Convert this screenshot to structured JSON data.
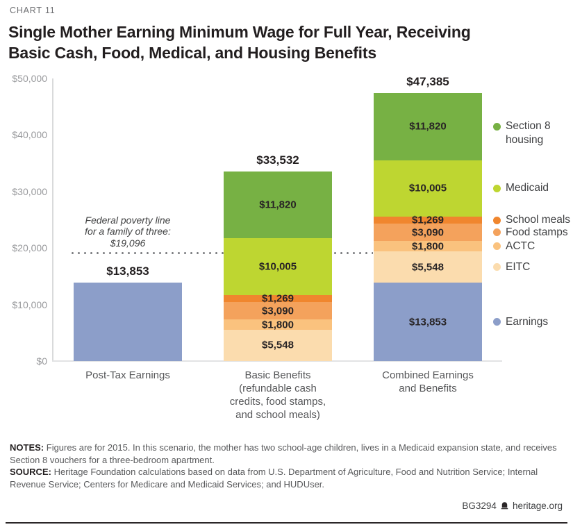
{
  "header": {
    "kicker": "CHART 11",
    "title_lines": [
      "Single Mother Earning Minimum Wage for Full Year, Receiving",
      "Basic Cash, Food, Medical, and Housing Benefits"
    ]
  },
  "chart_data": {
    "type": "bar",
    "stacked": true,
    "title": "Single Mother Earning Minimum Wage for Full Year, Receiving Basic Cash, Food, Medical, and Housing Benefits",
    "ylim": [
      0,
      50000
    ],
    "grid": false,
    "legend_position": "right",
    "yticks": [
      {
        "label": "$0",
        "value": 0
      },
      {
        "label": "$10,000",
        "value": 10000
      },
      {
        "label": "$20,000",
        "value": 20000
      },
      {
        "label": "$30,000",
        "value": 30000
      },
      {
        "label": "$40,000",
        "value": 40000
      },
      {
        "label": "$50,000",
        "value": 50000
      }
    ],
    "colors": {
      "earnings": "#8c9ec9",
      "eitc": "#fbdcae",
      "actc": "#fac27e",
      "food_stamps": "#f4a25c",
      "school_meals": "#f0862e",
      "medicaid": "#bed631",
      "section8": "#77b144"
    },
    "bars": [
      {
        "category_lines": [
          "Post-Tax Earnings"
        ],
        "total_label": "$13,853",
        "total_value": 13853,
        "segments": [
          {
            "key": "earnings",
            "name": "Earnings",
            "value": 13853,
            "label": ""
          }
        ]
      },
      {
        "category_lines": [
          "Basic Benefits",
          "(refundable cash",
          "credits, food stamps,",
          "and school meals)"
        ],
        "total_label": "$33,532",
        "total_value": 33532,
        "segments": [
          {
            "key": "eitc",
            "name": "EITC",
            "value": 5548,
            "label": "$5,548"
          },
          {
            "key": "actc",
            "name": "ACTC",
            "value": 1800,
            "label": "$1,800"
          },
          {
            "key": "food_stamps",
            "name": "Food stamps",
            "value": 3090,
            "label": "$3,090"
          },
          {
            "key": "school_meals",
            "name": "School meals",
            "value": 1269,
            "label": "$1,269"
          },
          {
            "key": "medicaid",
            "name": "Medicaid",
            "value": 10005,
            "label": "$10,005"
          },
          {
            "key": "section8",
            "name": "Section 8 housing",
            "value": 11820,
            "label": "$11,820"
          }
        ]
      },
      {
        "category_lines": [
          "Combined Earnings",
          "and Benefits"
        ],
        "total_label": "$47,385",
        "total_value": 47385,
        "segments": [
          {
            "key": "earnings",
            "name": "Earnings",
            "value": 13853,
            "label": "$13,853"
          },
          {
            "key": "eitc",
            "name": "EITC",
            "value": 5548,
            "label": "$5,548"
          },
          {
            "key": "actc",
            "name": "ACTC",
            "value": 1800,
            "label": "$1,800"
          },
          {
            "key": "food_stamps",
            "name": "Food stamps",
            "value": 3090,
            "label": "$3,090"
          },
          {
            "key": "school_meals",
            "name": "School meals",
            "value": 1269,
            "label": "$1,269"
          },
          {
            "key": "medicaid",
            "name": "Medicaid",
            "value": 10005,
            "label": "$10,005"
          },
          {
            "key": "section8",
            "name": "Section 8 housing",
            "value": 11820,
            "label": "$11,820"
          }
        ]
      }
    ],
    "legend": [
      {
        "key": "section8",
        "lines": [
          "Section 8",
          "housing"
        ]
      },
      {
        "key": "medicaid",
        "lines": [
          "Medicaid"
        ]
      },
      {
        "key": "school_meals",
        "lines": [
          "School meals"
        ]
      },
      {
        "key": "food_stamps",
        "lines": [
          "Food stamps"
        ]
      },
      {
        "key": "actc",
        "lines": [
          "ACTC"
        ]
      },
      {
        "key": "eitc",
        "lines": [
          "EITC"
        ]
      },
      {
        "key": "earnings",
        "lines": [
          "Earnings"
        ]
      }
    ],
    "annotation": {
      "lines": [
        "Federal poverty line",
        "for a family of three:",
        "$19,096"
      ],
      "value": 19096
    }
  },
  "notes": {
    "notes_label": "NOTES:",
    "notes_text": "Figures are for 2015. In this scenario, the mother has two school-age children, lives in a Medicaid expansion state, and receives Section 8 vouchers for a three-bedroom apartment.",
    "source_label": "SOURCE:",
    "source_text": "Heritage Foundation calculations based on data from U.S. Department of Agriculture, Food and Nutrition Service; Internal Revenue Service; Centers for Medicare and Medicaid Services; and HUDUser."
  },
  "footer": {
    "left_text": "BG3294",
    "logo_icon": "heritage-bell-icon",
    "right_text": "heritage.org"
  }
}
